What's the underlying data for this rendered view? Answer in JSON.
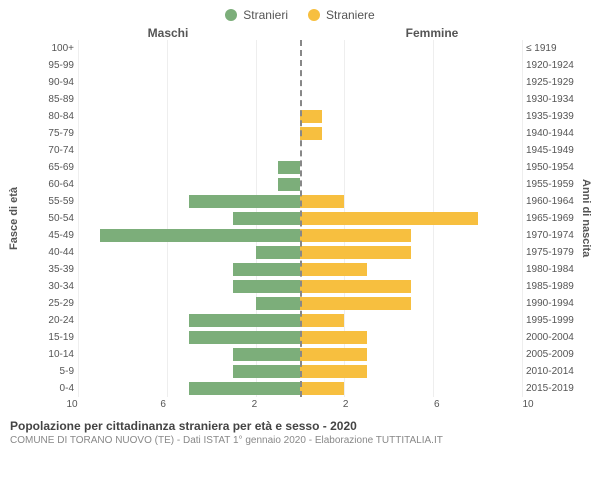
{
  "chart": {
    "type": "population-pyramid",
    "legend": {
      "male": {
        "label": "Stranieri",
        "color": "#7cae7a"
      },
      "female": {
        "label": "Straniere",
        "color": "#f7bf3f"
      }
    },
    "header_male": "Maschi",
    "header_female": "Femmine",
    "axis_left_title": "Fasce di età",
    "axis_right_title": "Anni di nascita",
    "x_max": 10,
    "x_ticks": [
      10,
      6,
      2,
      2,
      6,
      10
    ],
    "grid_color": "#eeeeee",
    "midline_color": "#888888",
    "bg": "#ffffff",
    "rows": [
      {
        "age": "100+",
        "birth": "≤ 1919",
        "m": 0,
        "f": 0
      },
      {
        "age": "95-99",
        "birth": "1920-1924",
        "m": 0,
        "f": 0
      },
      {
        "age": "90-94",
        "birth": "1925-1929",
        "m": 0,
        "f": 0
      },
      {
        "age": "85-89",
        "birth": "1930-1934",
        "m": 0,
        "f": 0
      },
      {
        "age": "80-84",
        "birth": "1935-1939",
        "m": 0,
        "f": 1
      },
      {
        "age": "75-79",
        "birth": "1940-1944",
        "m": 0,
        "f": 1
      },
      {
        "age": "70-74",
        "birth": "1945-1949",
        "m": 0,
        "f": 0
      },
      {
        "age": "65-69",
        "birth": "1950-1954",
        "m": 1,
        "f": 0
      },
      {
        "age": "60-64",
        "birth": "1955-1959",
        "m": 1,
        "f": 0
      },
      {
        "age": "55-59",
        "birth": "1960-1964",
        "m": 5,
        "f": 2
      },
      {
        "age": "50-54",
        "birth": "1965-1969",
        "m": 3,
        "f": 8
      },
      {
        "age": "45-49",
        "birth": "1970-1974",
        "m": 9,
        "f": 5
      },
      {
        "age": "40-44",
        "birth": "1975-1979",
        "m": 2,
        "f": 5
      },
      {
        "age": "35-39",
        "birth": "1980-1984",
        "m": 3,
        "f": 3
      },
      {
        "age": "30-34",
        "birth": "1985-1989",
        "m": 3,
        "f": 5
      },
      {
        "age": "25-29",
        "birth": "1990-1994",
        "m": 2,
        "f": 5
      },
      {
        "age": "20-24",
        "birth": "1995-1999",
        "m": 5,
        "f": 2
      },
      {
        "age": "15-19",
        "birth": "2000-2004",
        "m": 5,
        "f": 3
      },
      {
        "age": "10-14",
        "birth": "2005-2009",
        "m": 3,
        "f": 3
      },
      {
        "age": "5-9",
        "birth": "2010-2014",
        "m": 3,
        "f": 3
      },
      {
        "age": "0-4",
        "birth": "2015-2019",
        "m": 5,
        "f": 2
      }
    ],
    "caption": "Popolazione per cittadinanza straniera per età e sesso - 2020",
    "subcaption": "COMUNE DI TORANO NUOVO (TE) - Dati ISTAT 1° gennaio 2020 - Elaborazione TUTTITALIA.IT"
  }
}
